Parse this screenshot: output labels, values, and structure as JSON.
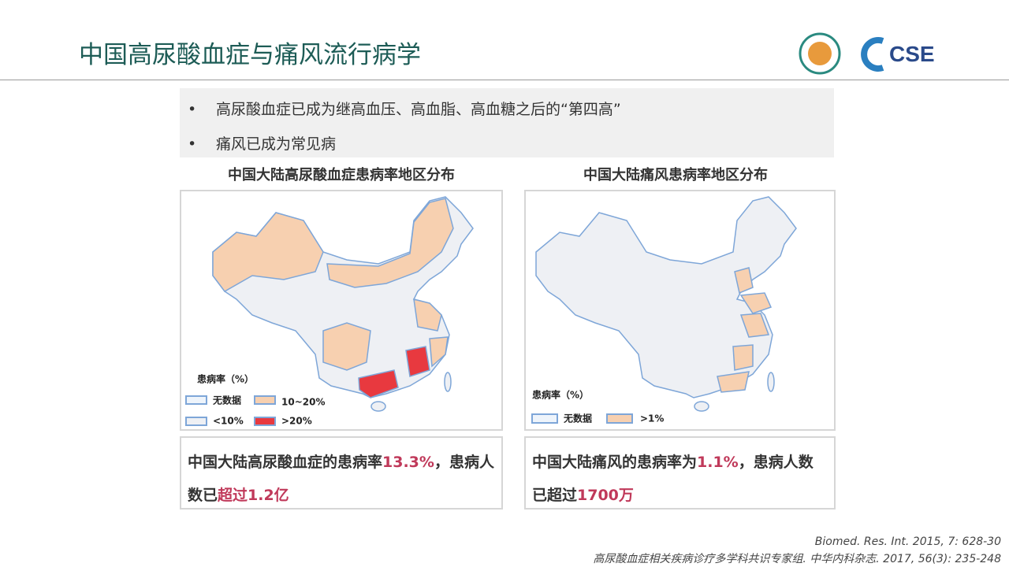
{
  "header": {
    "title": "中国高尿酸血症与痛风流行病学",
    "logo": "CSE"
  },
  "bullets": [
    "高尿酸血症已成为继高血压、高血脂、高血糖之后的“第四高”",
    "痛风已成为常见病"
  ],
  "left_panel": {
    "title": "中国大陆高尿酸血症患病率地区分布",
    "legend_title": "患病率（%）",
    "legend": [
      "无数据",
      "10~20%",
      "<10%",
      ">20%"
    ],
    "summary": [
      "中国大陆高尿酸血症的患病率",
      "13.3%",
      "，患病人数已",
      "超过1.2亿"
    ]
  },
  "right_panel": {
    "title": "中国大陆痛风患病率地区分布",
    "legend_title": "患病率（%）",
    "legend": [
      "无数据",
      ">1%"
    ],
    "summary": [
      "中国大陆痛风的患病率为",
      "1.1%",
      "，患病人数已超过",
      "1700万"
    ]
  },
  "references": [
    "Biomed. Res. Int. 2015, 7: 628-30",
    "高尿酸血症相关疾病诊疗多学科共识专家组. 中华内科杂志. 2017, 56(3): 235-248"
  ]
}
